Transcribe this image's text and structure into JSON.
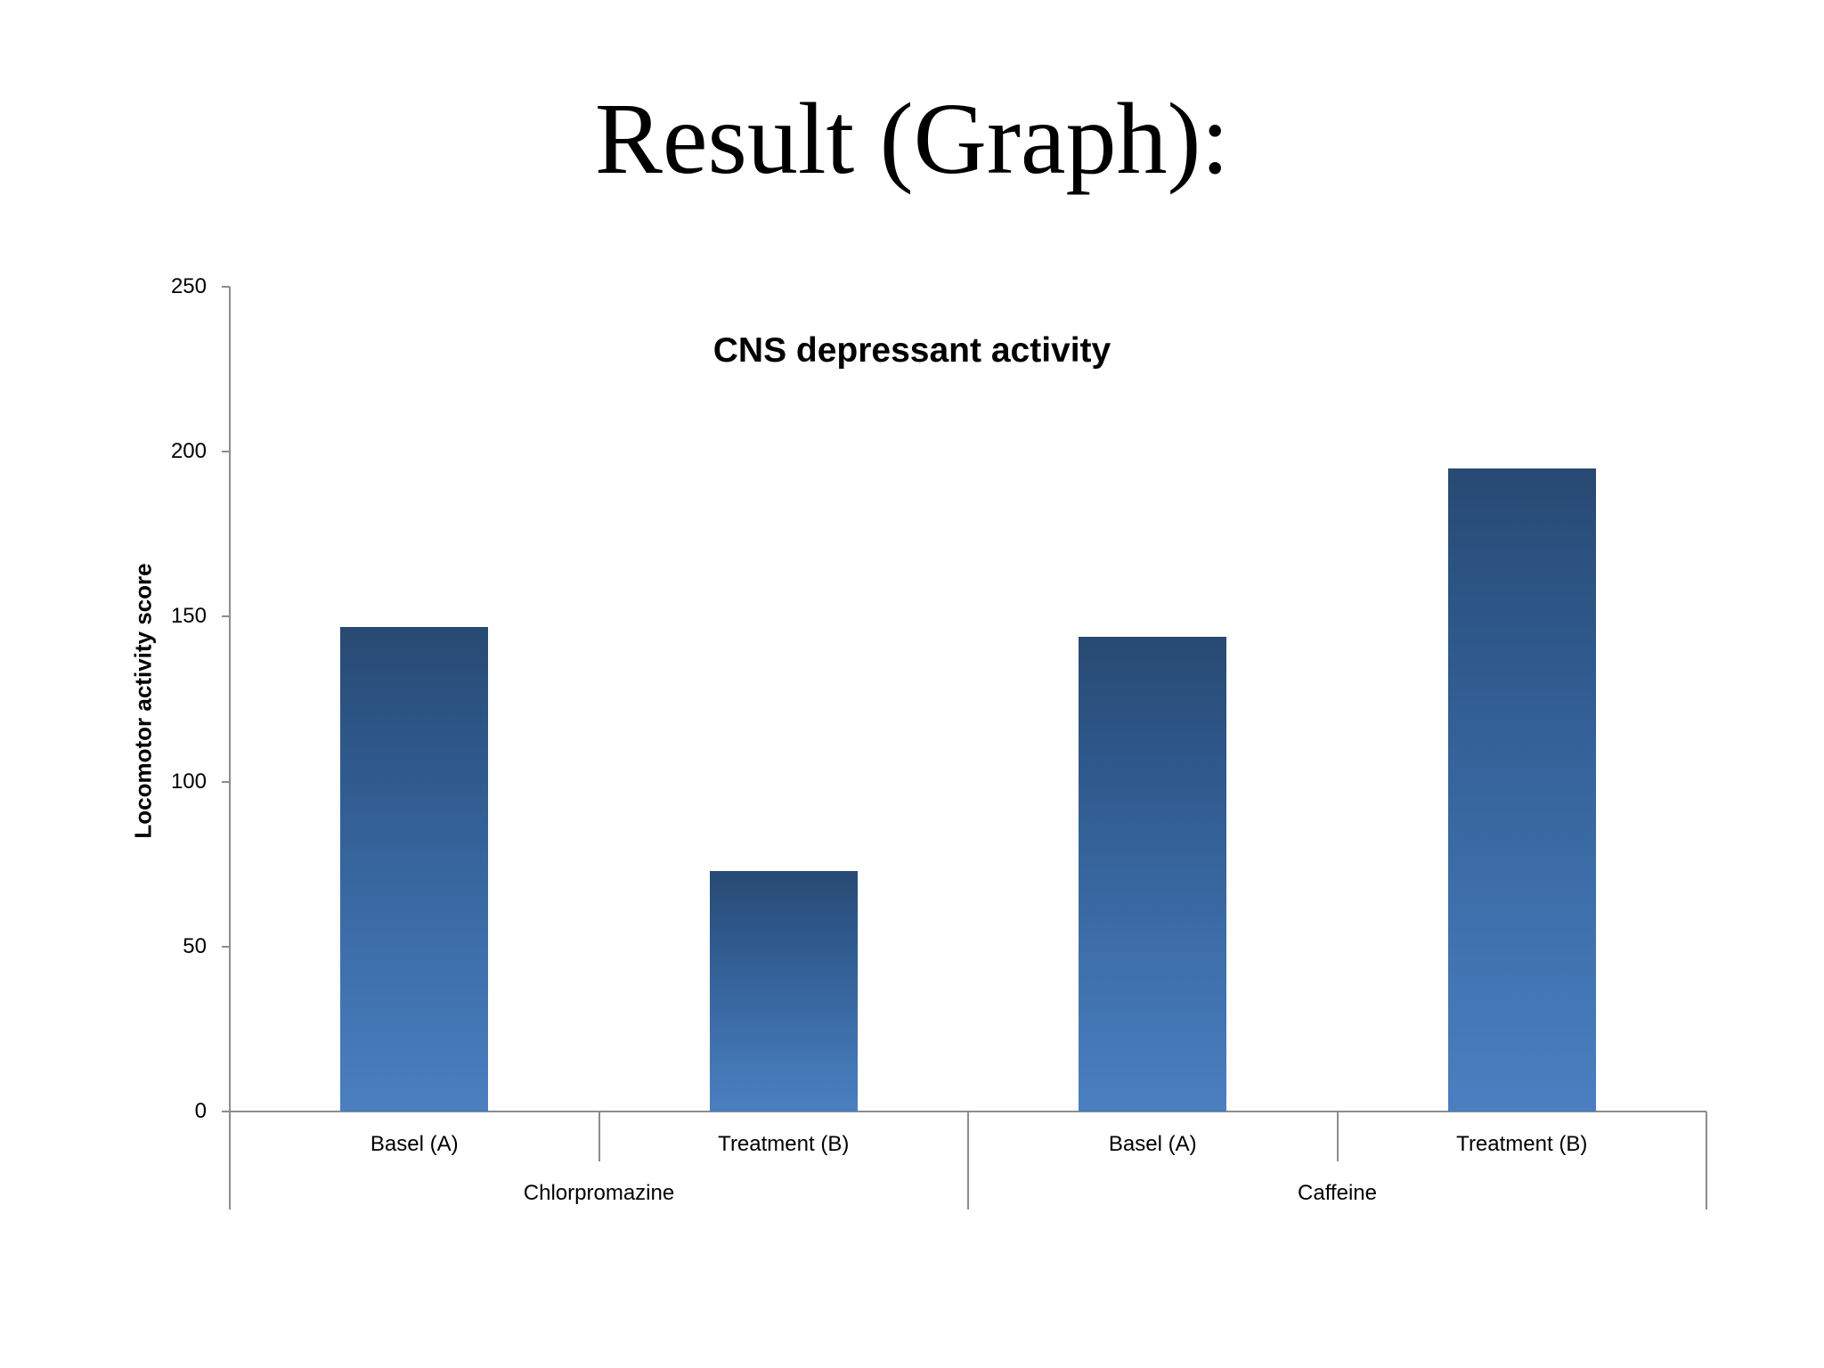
{
  "slide": {
    "title": "Result (Graph):"
  },
  "chart_data": {
    "type": "bar",
    "title": "CNS depressant activity",
    "xlabel": "",
    "ylabel": "Locomotor activity score",
    "ylim": [
      0,
      250
    ],
    "yticks": [
      "0",
      "50",
      "100",
      "150",
      "200",
      "250"
    ],
    "grid": false,
    "legend": null,
    "groups": [
      {
        "name": "Chlorpromazine",
        "categories": [
          "Basel (A)",
          "Treatment (B)"
        ],
        "values": [
          147,
          73
        ]
      },
      {
        "name": "Caffeine",
        "categories": [
          "Basel (A)",
          "Treatment (B)"
        ],
        "values": [
          144,
          195
        ]
      }
    ],
    "categories": [
      "Basel (A)",
      "Treatment (B)",
      "Basel (A)",
      "Treatment (B)"
    ],
    "values": [
      147,
      73,
      144,
      195
    ],
    "bar_color_top": "#284a73",
    "bar_color_bottom": "#4a7fc1"
  }
}
